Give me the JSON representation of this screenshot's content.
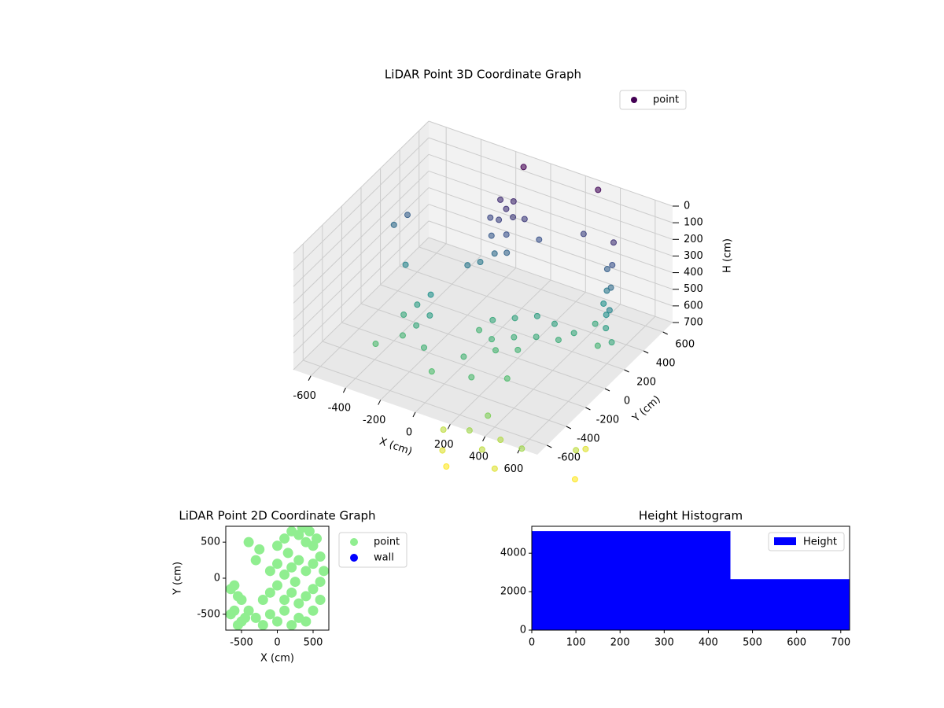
{
  "chart_data": [
    {
      "type": "scatter3d",
      "title": "LiDAR Point 3D Coordinate Graph",
      "xlabel": "X (cm)",
      "ylabel": "Y (cm)",
      "zlabel": "H (cm)",
      "colormap": "viridis",
      "legend": "upper right",
      "xlim": [
        -700,
        700
      ],
      "ylim": [
        -700,
        700
      ],
      "zlim": [
        700,
        0
      ],
      "xticks": [
        -600,
        -400,
        -200,
        0,
        200,
        400,
        600
      ],
      "yticks": [
        -600,
        -400,
        -200,
        0,
        200,
        400,
        600
      ],
      "zticks": [
        0,
        100,
        200,
        300,
        400,
        500,
        600,
        700
      ],
      "series": [
        {
          "name": "point",
          "color": "#440154",
          "x": [
            -150,
            -100,
            -50,
            -120,
            -80,
            0,
            -180,
            -60,
            -140,
            -30,
            -100,
            -160,
            500,
            520,
            540,
            560,
            480,
            500,
            530,
            550,
            470,
            600,
            450,
            520,
            0,
            100,
            200,
            300,
            400,
            150,
            250,
            350,
            50,
            -50,
            100,
            200,
            -400,
            -350,
            -300,
            -350,
            -300,
            -250,
            -450,
            -200,
            -500,
            -600,
            -650,
            -200,
            100,
            300,
            0,
            100,
            -100,
            250,
            200,
            300,
            100,
            250,
            350,
            150,
            400,
            50,
            500,
            700,
            700,
            750,
            -100,
            300
          ],
          "y": [
            450,
            420,
            400,
            380,
            460,
            430,
            400,
            350,
            340,
            300,
            300,
            260,
            450,
            400,
            350,
            300,
            420,
            380,
            320,
            280,
            400,
            250,
            350,
            250,
            100,
            150,
            200,
            200,
            220,
            50,
            100,
            150,
            0,
            50,
            -50,
            0,
            -100,
            -50,
            0,
            -200,
            -150,
            -100,
            -300,
            -250,
            100,
            300,
            250,
            200,
            400,
            500,
            -200,
            -300,
            -350,
            -200,
            -500,
            -550,
            -600,
            -400,
            -450,
            -650,
            -600,
            -500,
            -500,
            -300,
            -200,
            -400,
            600,
            650
          ],
          "z": [
            130,
            150,
            170,
            200,
            120,
            180,
            220,
            250,
            280,
            320,
            350,
            400,
            150,
            250,
            350,
            450,
            300,
            400,
            500,
            550,
            500,
            600,
            600,
            650,
            600,
            580,
            560,
            570,
            600,
            620,
            610,
            620,
            640,
            650,
            660,
            650,
            600,
            550,
            500,
            650,
            600,
            550,
            680,
            640,
            450,
            300,
            350,
            400,
            250,
            200,
            650,
            680,
            690,
            690,
            850,
            900,
            950,
            800,
            880,
            1000,
            950,
            900,
            850,
            900,
            950,
            1000,
            0,
            20
          ]
        }
      ]
    },
    {
      "type": "scatter",
      "title": "LiDAR Point 2D Coordinate Graph",
      "xlabel": "X (cm)",
      "ylabel": "Y (cm)",
      "legend": "outside right",
      "xlim": [
        -720,
        720
      ],
      "ylim": [
        -720,
        720
      ],
      "xticks": [
        -500,
        0,
        500
      ],
      "yticks": [
        -500,
        0,
        500
      ],
      "series": [
        {
          "name": "point",
          "color": "#90ee90",
          "x": [
            -650,
            -600,
            -550,
            -500,
            -450,
            -600,
            -500,
            -400,
            -650,
            -550,
            -300,
            -200,
            -100,
            0,
            100,
            200,
            300,
            400,
            500,
            600,
            -200,
            -100,
            0,
            100,
            200,
            300,
            400,
            500,
            600,
            -100,
            0,
            100,
            200,
            300,
            400,
            500,
            600,
            0,
            100,
            200,
            300,
            400,
            500,
            -300,
            -400,
            -250,
            350,
            450,
            550,
            650,
            150,
            250
          ],
          "y": [
            -150,
            -450,
            -250,
            -600,
            -550,
            -100,
            -300,
            -450,
            -500,
            -650,
            -550,
            -650,
            -500,
            -600,
            -450,
            -650,
            -550,
            -600,
            -450,
            -300,
            -300,
            -200,
            -100,
            -300,
            -200,
            -350,
            -250,
            -150,
            -50,
            100,
            200,
            50,
            150,
            250,
            100,
            200,
            300,
            450,
            550,
            650,
            600,
            500,
            450,
            250,
            500,
            400,
            700,
            650,
            550,
            100,
            350,
            -50
          ]
        },
        {
          "name": "wall",
          "color": "#0000ff",
          "x": [],
          "y": []
        }
      ]
    },
    {
      "type": "histogram",
      "title": "Height Histogram",
      "legend": "upper right",
      "bins": [
        0,
        450,
        720
      ],
      "series": [
        {
          "name": "Height",
          "color": "#0000ff",
          "values": [
            5150,
            2650
          ]
        }
      ],
      "xlim": [
        0,
        720
      ],
      "ylim": [
        0,
        5400
      ],
      "xticks": [
        0,
        100,
        200,
        300,
        400,
        500,
        600,
        700
      ],
      "yticks": [
        0,
        2000,
        4000
      ]
    }
  ]
}
